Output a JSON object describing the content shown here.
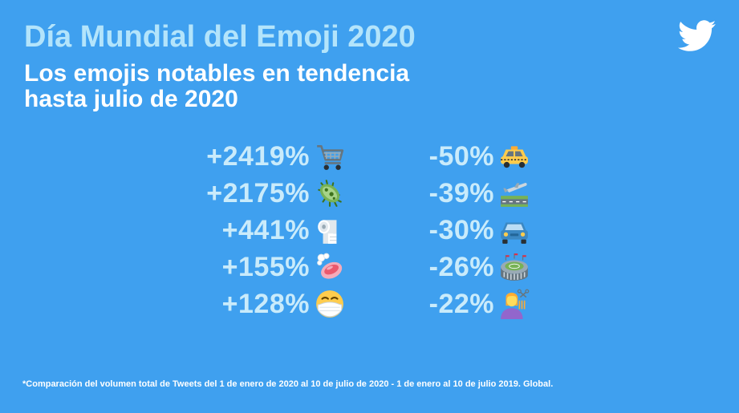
{
  "header": {
    "title": "Día Mundial del Emoji 2020",
    "subtitle_line1": "Los emojis notables en tendencia",
    "subtitle_line2": "hasta julio de 2020",
    "logo_icon": "twitter-bird-icon"
  },
  "colors": {
    "background": "#3fa0ef",
    "title": "#b3e4fb",
    "value_text": "#c9ebfb"
  },
  "rising": [
    {
      "value": "+2419%",
      "icon": "shopping-cart-icon"
    },
    {
      "value": "+2175%",
      "icon": "microbe-icon"
    },
    {
      "value": "+441%",
      "icon": "toilet-paper-roll-icon"
    },
    {
      "value": "+155%",
      "icon": "soap-icon"
    },
    {
      "value": "+128%",
      "icon": "face-with-medical-mask-icon"
    }
  ],
  "falling": [
    {
      "value": "-50%",
      "icon": "taxi-icon"
    },
    {
      "value": "-39%",
      "icon": "airplane-departure-icon"
    },
    {
      "value": "-30%",
      "icon": "automobile-icon"
    },
    {
      "value": "-26%",
      "icon": "stadium-icon"
    },
    {
      "value": "-22%",
      "icon": "haircut-icon"
    }
  ],
  "footnote": "*Comparación del volumen total de Tweets del 1 de enero de 2020 al 10 de julio de 2020 - 1 de enero al 10 de julio 2019. Global."
}
